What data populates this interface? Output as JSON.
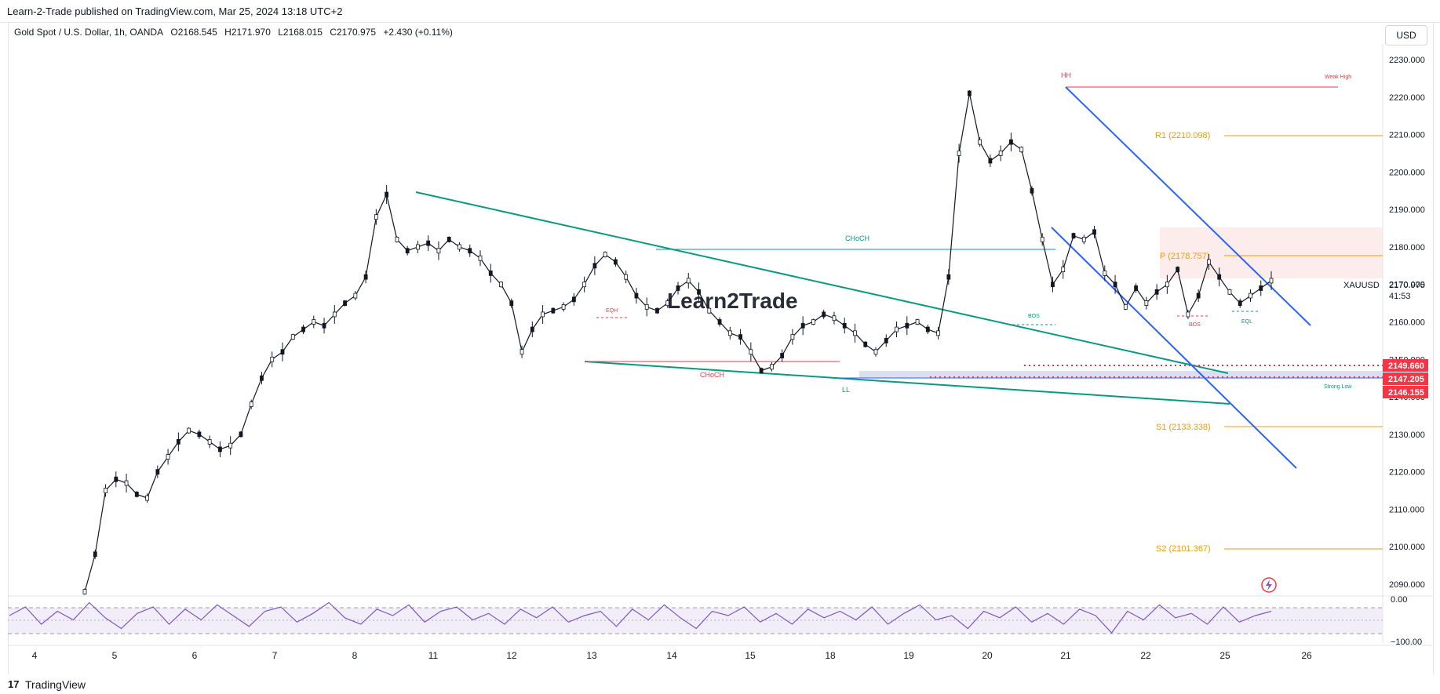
{
  "header": {
    "published_text": "Learn-2-Trade published on TradingView.com, Mar 25, 2024 13:18 UTC+2"
  },
  "legend": {
    "symbol": "Gold Spot / U.S. Dollar, 1h, OANDA",
    "open": "O2168.545",
    "high": "H2171.970",
    "low": "L2168.015",
    "close": "C2170.975",
    "change": "+2.430 (+0.11%)"
  },
  "currency_button": "USD",
  "watermark": "Learn2Trade",
  "footer": {
    "brand": "TradingView"
  },
  "colors": {
    "up_down_bar": "#131722",
    "trendline_green": "#089981",
    "channel_blue": "#2962ff",
    "pivot_orange": "#f59b00",
    "resistance_red": "#f23645",
    "rsi_line": "#7e57c2"
  },
  "chart_data": [
    {
      "type": "line",
      "title": "",
      "x_labels": [
        "4",
        "5",
        "6",
        "7",
        "8",
        "11",
        "12",
        "13",
        "14",
        "15",
        "18",
        "19",
        "20",
        "21",
        "22",
        "25",
        "26"
      ],
      "y_ticks": [
        "2230.000",
        "2220.000",
        "2210.000",
        "2200.000",
        "2190.000",
        "2180.000",
        "2170.000",
        "2160.000",
        "2150.000",
        "2140.000",
        "2130.000",
        "2120.000",
        "2110.000",
        "2100.000",
        "2090.000"
      ],
      "ylim": [
        2085,
        2232
      ],
      "series": [
        {
          "values": [
            2088,
            2098,
            2115,
            2118,
            2117,
            2114,
            2113,
            2120,
            2124,
            2128,
            2131,
            2130,
            2128,
            2126,
            2127,
            2130,
            2138,
            2145,
            2150,
            2152,
            2156,
            2158,
            2160,
            2159,
            2162,
            2165,
            2167,
            2172,
            2188,
            2194,
            2182,
            2179,
            2180,
            2181,
            2179,
            2182,
            2180,
            2179,
            2177,
            2173,
            2170,
            2165,
            2152,
            2158,
            2162,
            2163,
            2164,
            2166,
            2170,
            2175,
            2178,
            2176,
            2172,
            2167,
            2164,
            2163,
            2165,
            2169,
            2171,
            2168,
            2163,
            2160,
            2157,
            2156,
            2152,
            2147,
            2148,
            2151,
            2156,
            2159,
            2160,
            2162,
            2161,
            2159,
            2157,
            2154,
            2152,
            2155,
            2158,
            2159,
            2160,
            2158,
            2157,
            2172,
            2205,
            2221,
            2208,
            2203,
            2205,
            2208,
            2206,
            2195,
            2182,
            2170,
            2174,
            2183,
            2182,
            2184,
            2173,
            2170,
            2164,
            2169,
            2165,
            2168,
            2170,
            2174,
            2162,
            2167,
            2176,
            2172,
            2168,
            2165,
            2167,
            2169,
            2171
          ]
        }
      ],
      "labels": {
        "HH": "HH",
        "LL": "LL",
        "CHoCH_upper": "CHoCH",
        "CHoCH_lower": "CHoCH",
        "EQH": "EQH",
        "BOS_left": "BOS",
        "BOS_right": "BOS",
        "EQL": "EQL",
        "weak_high": "Weak High",
        "strong_low": "Strong Low",
        "R1": "R1 (2210.098)",
        "P": "P (2178.757)",
        "S1": "S1 (2133.338)",
        "S2": "S2 (2101.367)",
        "symbol_label": "XAUUSD",
        "price_label": "2170.975",
        "countdown": "41:53",
        "badge_1": "2149.660",
        "badge_2": "2147.205",
        "badge_3": "2146.155"
      }
    },
    {
      "type": "line",
      "title": "",
      "y_ticks": [
        "0.00",
        "−100.00"
      ],
      "ylim": [
        -100,
        0
      ],
      "series": [
        {
          "values": [
            -40,
            -20,
            -60,
            -30,
            -50,
            -10,
            -45,
            -70,
            -35,
            -20,
            -60,
            -25,
            -50,
            -15,
            -40,
            -65,
            -30,
            -20,
            -55,
            -35,
            -10,
            -45,
            -60,
            -25,
            -40,
            -15,
            -55,
            -30,
            -20,
            -50,
            -35,
            -60,
            -25,
            -45,
            -20,
            -55,
            -40,
            -30,
            -65,
            -25,
            -50,
            -15,
            -45,
            -70,
            -30,
            -40,
            -20,
            -55,
            -35,
            -60,
            -25,
            -45,
            -30,
            -50,
            -20,
            -60,
            -35,
            -15,
            -50,
            -40,
            -70,
            -30,
            -45,
            -20,
            -55,
            -35,
            -60,
            -25,
            -40,
            -80,
            -30,
            -50,
            -15,
            -45,
            -35,
            -60,
            -20,
            -55,
            -40,
            -30
          ]
        }
      ]
    }
  ]
}
